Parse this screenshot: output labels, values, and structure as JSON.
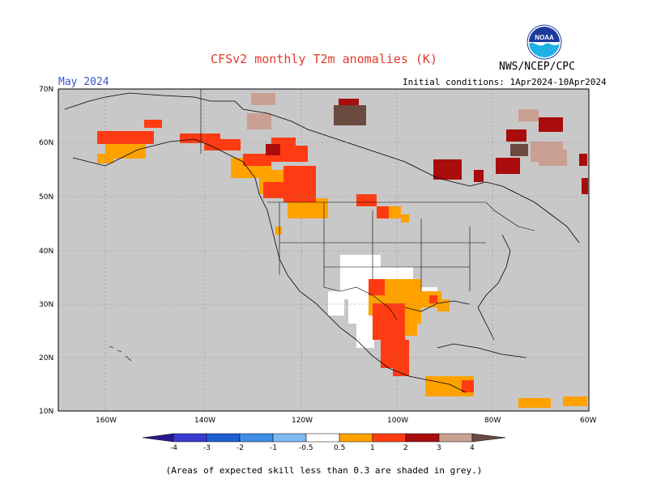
{
  "title": "CFSv2 monthly T2m anomalies (K)",
  "period": "May 2024",
  "initial_conditions": "Initial conditions: 1Apr2024-10Apr2024",
  "agency": "NWS/NCEP/CPC",
  "logo_text": "NOAA",
  "latitude_labels": [
    "70N",
    "60N",
    "50N",
    "40N",
    "30N",
    "20N",
    "10N"
  ],
  "longitude_labels": [
    "160W",
    "140W",
    "120W",
    "100W",
    "80W",
    "60W"
  ],
  "colorbar": {
    "labels": [
      "-4",
      "-3",
      "-2",
      "-1",
      "-0.5",
      "0.5",
      "1",
      "2",
      "3",
      "4"
    ],
    "colors": {
      "lt_-4": "#2a1a8f",
      "-4_-3": "#3a3ad0",
      "-3_-2": "#1f5fd4",
      "-2_-1": "#3f8ee8",
      "-1_-0.5": "#7fb8f0",
      "-0.5_0.5": "#ffffff",
      "0.5_1": "#ffa200",
      "1_2": "#ff3b12",
      "2_3": "#a80c0c",
      "3_4": "#c9a092",
      "gt_4": "#6b4a40"
    }
  },
  "colors": {
    "ocean_land_low_skill": "#c8c8c8",
    "no_anomaly": "#ffffff",
    "title": "#e03a2a",
    "period": "#3a55d0"
  },
  "footnote": "(Areas of expected skill less than 0.3 are shaded in grey.)"
}
